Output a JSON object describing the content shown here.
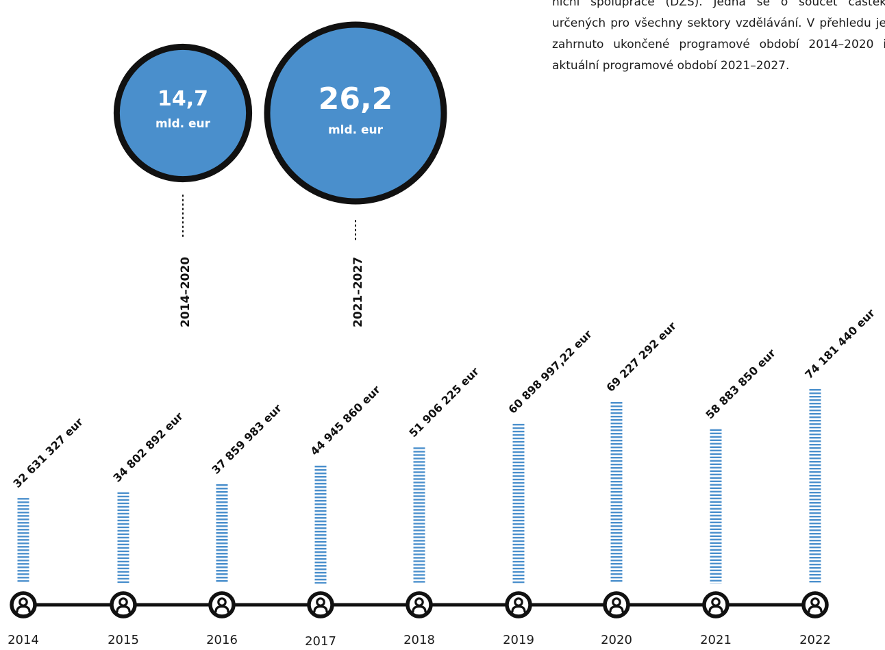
{
  "intro_text": "niční spolupráce (DZS). Jedná se o součet částek určených pro všechny sektory vzdělávání. V přehledu je zahrnuto ukončené programové období 2014–2020 i aktuální programové období 2021–2027.",
  "colors": {
    "bubble": "#4a8fcc",
    "outline": "#111111",
    "dash": "#4a8fcc",
    "icon": "#111111"
  },
  "icons": {
    "timeline_marker": "person-icon"
  },
  "chart_data": [
    {
      "type": "bubble",
      "categories": [
        "2014–2020",
        "2021–2027"
      ],
      "values": [
        14.7,
        26.2
      ],
      "value_labels": [
        "14,7",
        "26,2"
      ],
      "unit_label": "mld. eur"
    },
    {
      "type": "bar",
      "categories": [
        "2014",
        "2015",
        "2016",
        "2017",
        "2018",
        "2019",
        "2020",
        "2021",
        "2022"
      ],
      "values": [
        32631327,
        34802892,
        37859983,
        44945860,
        51906225,
        60898997.22,
        69227292,
        58883850,
        74181440
      ],
      "value_labels": [
        "32 631 327 eur",
        "34 802 892 eur",
        "37 859 983 eur",
        "44 945 860 eur",
        "51 906 225 eur",
        "60 898 997,22 eur",
        "69 227 292 eur",
        "58 883 850 eur",
        "74 181 440 eur"
      ],
      "ylim": [
        0,
        74181440
      ]
    }
  ]
}
